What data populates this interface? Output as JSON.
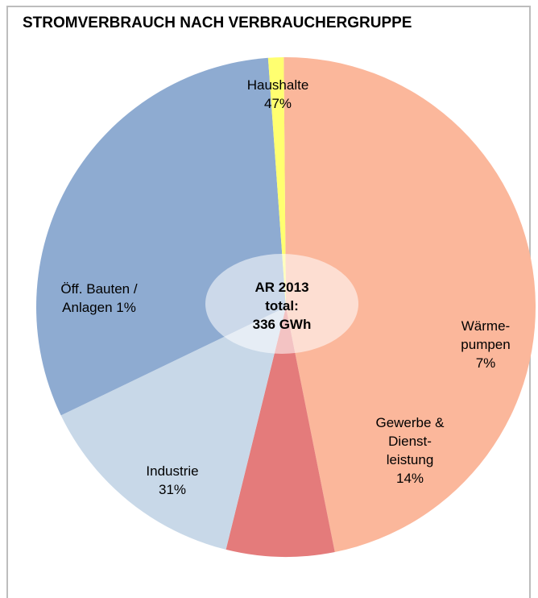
{
  "chart_data": {
    "type": "pie",
    "title": "STROMVERBRAUCH NACH VERBRAUCHERGRUPPE",
    "center_label": [
      "AR 2013",
      "total:",
      "336 GWh"
    ],
    "slices": [
      {
        "label": [
          "Haushalte",
          "47%"
        ],
        "value": 47,
        "color": "#fbb79b"
      },
      {
        "label": [
          "Wärme-",
          "pumpen",
          "7%"
        ],
        "value": 7,
        "color": "#e47b7b"
      },
      {
        "label": [
          "Gewerbe &",
          "Dienst-",
          "leistung",
          "14%"
        ],
        "value": 14,
        "color": "#c8d8e8"
      },
      {
        "label": [
          "Industrie",
          "31%"
        ],
        "value": 31,
        "color": "#8eabd1"
      },
      {
        "label": [
          "Öff. Bauten /",
          "Anlagen 1%"
        ],
        "value": 1,
        "color": "#ffff70"
      }
    ]
  }
}
